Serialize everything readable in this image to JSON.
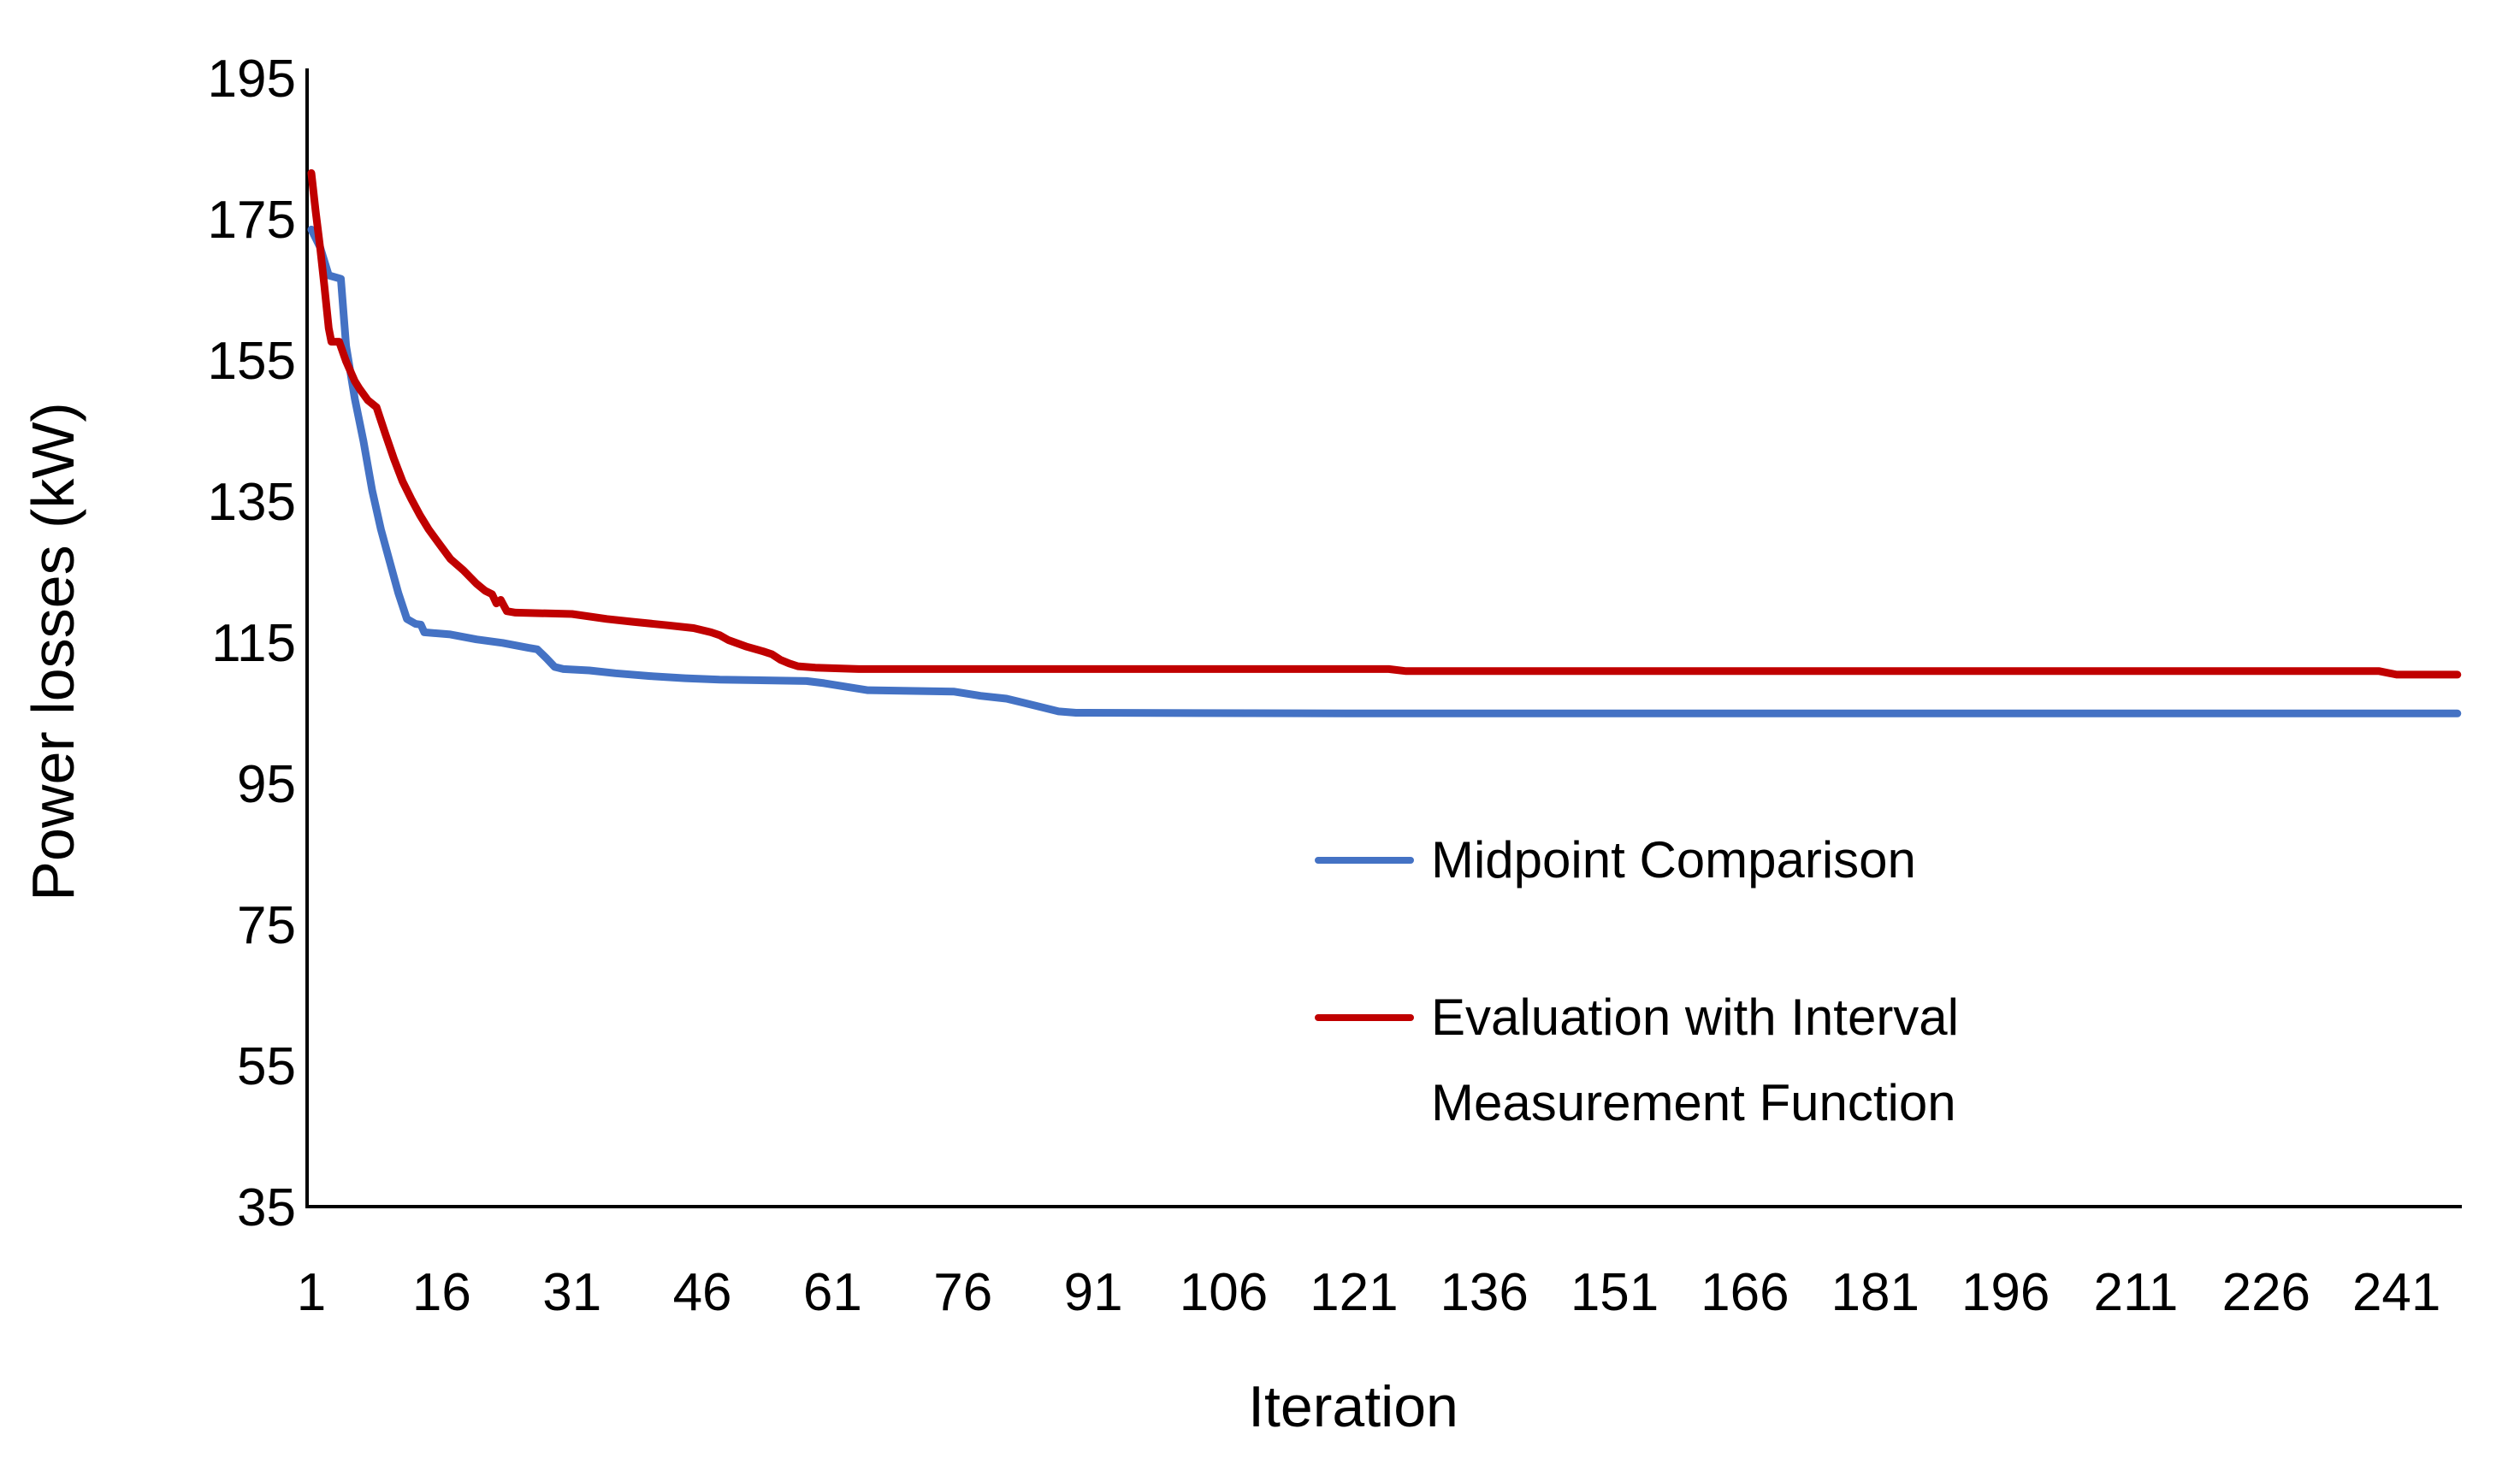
{
  "axes": {
    "x_title": "Iteration",
    "y_title": "Power losses (kW)"
  },
  "legend": {
    "item1": {
      "label": "Midpoint Comparison",
      "color": "#4472C4"
    },
    "item2": {
      "label_line1": "Evaluation with Interval",
      "label_line2": "Measurement Function",
      "color": "#C00000"
    }
  },
  "chart_data": {
    "type": "line",
    "title": "",
    "xlabel": "Iteration",
    "ylabel": "Power losses (kW)",
    "xlim": [
      1,
      248
    ],
    "ylim": [
      35,
      195
    ],
    "x_ticks": [
      1,
      16,
      31,
      46,
      61,
      76,
      91,
      106,
      121,
      136,
      151,
      166,
      181,
      196,
      211,
      226,
      241
    ],
    "y_ticks": [
      35,
      55,
      75,
      95,
      115,
      135,
      155,
      175,
      195
    ],
    "grid": false,
    "legend_position": "center-right",
    "axis_color": "#000000",
    "line_width": 9,
    "series": [
      {
        "name": "Midpoint Comparison",
        "color": "#4472C4",
        "points": [
          [
            1,
            173.5
          ],
          [
            2,
            171
          ],
          [
            3,
            167
          ],
          [
            4.4,
            166.5
          ],
          [
            5,
            157
          ],
          [
            6,
            149.5
          ],
          [
            7,
            143.5
          ],
          [
            8,
            136.5
          ],
          [
            9,
            131
          ],
          [
            10,
            126.5
          ],
          [
            11,
            122
          ],
          [
            12,
            118.3
          ],
          [
            13,
            117.6
          ],
          [
            13.6,
            117.5
          ],
          [
            14,
            116.4
          ],
          [
            17,
            116.1
          ],
          [
            20,
            115.4
          ],
          [
            23,
            114.9
          ],
          [
            26,
            114.2
          ],
          [
            27,
            114
          ],
          [
            28,
            112.8
          ],
          [
            29,
            111.5
          ],
          [
            30,
            111.2
          ],
          [
            33,
            111
          ],
          [
            36,
            110.6
          ],
          [
            40,
            110.2
          ],
          [
            44,
            109.9
          ],
          [
            48,
            109.7
          ],
          [
            58,
            109.5
          ],
          [
            60,
            109.2
          ],
          [
            63,
            108.6
          ],
          [
            65,
            108.2
          ],
          [
            75,
            108
          ],
          [
            78,
            107.4
          ],
          [
            81,
            107
          ],
          [
            83,
            106.4
          ],
          [
            85,
            105.8
          ],
          [
            87,
            105.2
          ],
          [
            89,
            105
          ],
          [
            120,
            104.9
          ],
          [
            248,
            104.9
          ]
        ]
      },
      {
        "name": "Evaluation with Interval Measurement Function",
        "color": "#C00000",
        "points": [
          [
            1,
            181.5
          ],
          [
            1.5,
            176
          ],
          [
            2,
            171
          ],
          [
            2.5,
            165.5
          ],
          [
            3,
            159.5
          ],
          [
            3.3,
            157.6
          ],
          [
            4.2,
            157.6
          ],
          [
            5,
            154.8
          ],
          [
            6,
            152
          ],
          [
            6.5,
            151
          ],
          [
            7.5,
            149.3
          ],
          [
            8.5,
            148.3
          ],
          [
            9.5,
            144.6
          ],
          [
            10.5,
            141
          ],
          [
            11.5,
            137.8
          ],
          [
            12.5,
            135.3
          ],
          [
            13.5,
            133
          ],
          [
            14.5,
            131
          ],
          [
            15.5,
            129.3
          ],
          [
            17,
            126.8
          ],
          [
            18.5,
            125.2
          ],
          [
            20,
            123.3
          ],
          [
            21,
            122.3
          ],
          [
            21.8,
            121.8
          ],
          [
            22.3,
            120.5
          ],
          [
            22.8,
            121
          ],
          [
            23.5,
            119.4
          ],
          [
            24.5,
            119.2
          ],
          [
            31,
            119
          ],
          [
            35,
            118.3
          ],
          [
            38,
            117.9
          ],
          [
            42,
            117.4
          ],
          [
            45,
            117
          ],
          [
            47,
            116.4
          ],
          [
            48,
            116
          ],
          [
            49,
            115.3
          ],
          [
            51,
            114.4
          ],
          [
            53,
            113.7
          ],
          [
            54,
            113.3
          ],
          [
            55,
            112.5
          ],
          [
            56,
            112
          ],
          [
            57,
            111.6
          ],
          [
            59,
            111.4
          ],
          [
            64,
            111.2
          ],
          [
            125,
            111.2
          ],
          [
            127,
            110.9
          ],
          [
            239,
            110.9
          ],
          [
            241,
            110.4
          ],
          [
            248,
            110.4
          ]
        ]
      }
    ]
  }
}
